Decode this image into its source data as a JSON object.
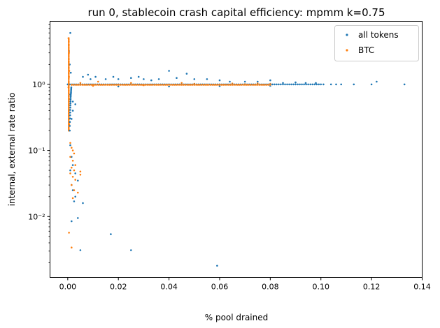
{
  "chart_data": {
    "type": "scatter",
    "title": "run 0, stablecoin crash capital efficiency: mpmm k=0.75",
    "xlabel": "% pool drained",
    "ylabel": "internal, external rate ratio",
    "xlim": [
      -0.007,
      0.14
    ],
    "ylim": [
      0.0012,
      9.0
    ],
    "yscale": "log",
    "xticks": [
      0.0,
      0.02,
      0.04,
      0.06,
      0.08,
      0.1,
      0.12,
      0.14
    ],
    "xtick_labels": [
      "0.00",
      "0.02",
      "0.04",
      "0.06",
      "0.08",
      "0.10",
      "0.12",
      "0.14"
    ],
    "yticks": [
      0.01,
      0.1,
      1
    ],
    "ytick_labels": [
      "10⁻²",
      "10⁻¹",
      "10⁰"
    ],
    "legend_position": "top-right",
    "grid": false,
    "series": [
      {
        "name": "all tokens",
        "color": "#1f77b4",
        "points": [
          [
            0.001,
            6.0
          ],
          [
            0.0005,
            3.2
          ],
          [
            0.0008,
            2.0
          ],
          [
            0.0012,
            1.5
          ],
          [
            0.001,
            0.7
          ],
          [
            0.002,
            0.55
          ],
          [
            0.003,
            0.5
          ],
          [
            0.0015,
            0.3
          ],
          [
            0.002,
            0.4
          ],
          [
            0.006,
            1.3
          ],
          [
            0.008,
            1.4
          ],
          [
            0.009,
            1.2
          ],
          [
            0.011,
            1.3
          ],
          [
            0.015,
            1.2
          ],
          [
            0.018,
            1.3
          ],
          [
            0.02,
            1.2
          ],
          [
            0.025,
            1.25
          ],
          [
            0.028,
            1.3
          ],
          [
            0.03,
            1.2
          ],
          [
            0.033,
            1.15
          ],
          [
            0.036,
            1.2
          ],
          [
            0.04,
            1.6
          ],
          [
            0.043,
            1.25
          ],
          [
            0.047,
            1.45
          ],
          [
            0.05,
            1.2
          ],
          [
            0.055,
            1.2
          ],
          [
            0.06,
            1.15
          ],
          [
            0.064,
            1.1
          ],
          [
            0.07,
            1.1
          ],
          [
            0.075,
            1.1
          ],
          [
            0.08,
            1.15
          ],
          [
            0.085,
            1.05
          ],
          [
            0.09,
            1.07
          ],
          [
            0.094,
            1.05
          ],
          [
            0.098,
            1.05
          ],
          [
            0.101,
            1.0
          ],
          [
            0.104,
            1.0
          ],
          [
            0.106,
            1.0
          ],
          [
            0.108,
            1.0
          ],
          [
            0.113,
            1.0
          ],
          [
            0.12,
            1.0
          ],
          [
            0.122,
            1.1
          ],
          [
            0.133,
            1.0
          ],
          [
            0.02,
            0.93
          ],
          [
            0.04,
            0.93
          ],
          [
            0.06,
            0.94
          ],
          [
            0.08,
            0.95
          ],
          [
            0.001,
            0.12
          ],
          [
            0.0015,
            0.08
          ],
          [
            0.002,
            0.06
          ],
          [
            0.001,
            0.05
          ],
          [
            0.003,
            0.045
          ],
          [
            0.004,
            0.035
          ],
          [
            0.0015,
            0.03
          ],
          [
            0.002,
            0.025
          ],
          [
            0.003,
            0.02
          ],
          [
            0.0025,
            0.017
          ],
          [
            0.006,
            0.016
          ],
          [
            0.004,
            0.0095
          ],
          [
            0.0015,
            0.0085
          ],
          [
            0.017,
            0.0054
          ],
          [
            0.005,
            0.0031
          ],
          [
            0.025,
            0.0031
          ],
          [
            0.059,
            0.0018
          ]
        ]
      },
      {
        "name": "BTC",
        "color": "#ff7f0e",
        "points": [
          [
            0.0003,
            5.0
          ],
          [
            0.0004,
            4.0
          ],
          [
            0.0005,
            3.0
          ],
          [
            0.0004,
            2.2
          ],
          [
            0.0006,
            1.6
          ],
          [
            0.0005,
            1.3
          ],
          [
            0.0003,
            0.9
          ],
          [
            0.0005,
            0.6
          ],
          [
            0.0004,
            0.4
          ],
          [
            0.0006,
            0.25
          ],
          [
            0.0005,
            0.2
          ],
          [
            0.001,
            0.13
          ],
          [
            0.0015,
            0.11
          ],
          [
            0.002,
            0.1
          ],
          [
            0.0025,
            0.09
          ],
          [
            0.001,
            0.08
          ],
          [
            0.002,
            0.07
          ],
          [
            0.003,
            0.06
          ],
          [
            0.0015,
            0.055
          ],
          [
            0.0025,
            0.05
          ],
          [
            0.001,
            0.045
          ],
          [
            0.005,
            0.048
          ],
          [
            0.005,
            0.043
          ],
          [
            0.002,
            0.04
          ],
          [
            0.003,
            0.036
          ],
          [
            0.0015,
            0.03
          ],
          [
            0.0025,
            0.025
          ],
          [
            0.004,
            0.023
          ],
          [
            0.002,
            0.019
          ],
          [
            0.0005,
            0.0057
          ],
          [
            0.0015,
            0.0034
          ],
          [
            0.01,
            0.95
          ],
          [
            0.02,
            1.0
          ],
          [
            0.03,
            0.97
          ],
          [
            0.04,
            1.0
          ],
          [
            0.05,
            1.02
          ],
          [
            0.06,
            1.0
          ],
          [
            0.07,
            1.01
          ],
          [
            0.08,
            1.02
          ],
          [
            0.005,
            1.05
          ],
          [
            0.012,
            1.1
          ],
          [
            0.025,
            1.05
          ],
          [
            0.045,
            1.05
          ],
          [
            0.065,
            1.03
          ],
          [
            0.075,
            1.03
          ]
        ]
      }
    ]
  }
}
